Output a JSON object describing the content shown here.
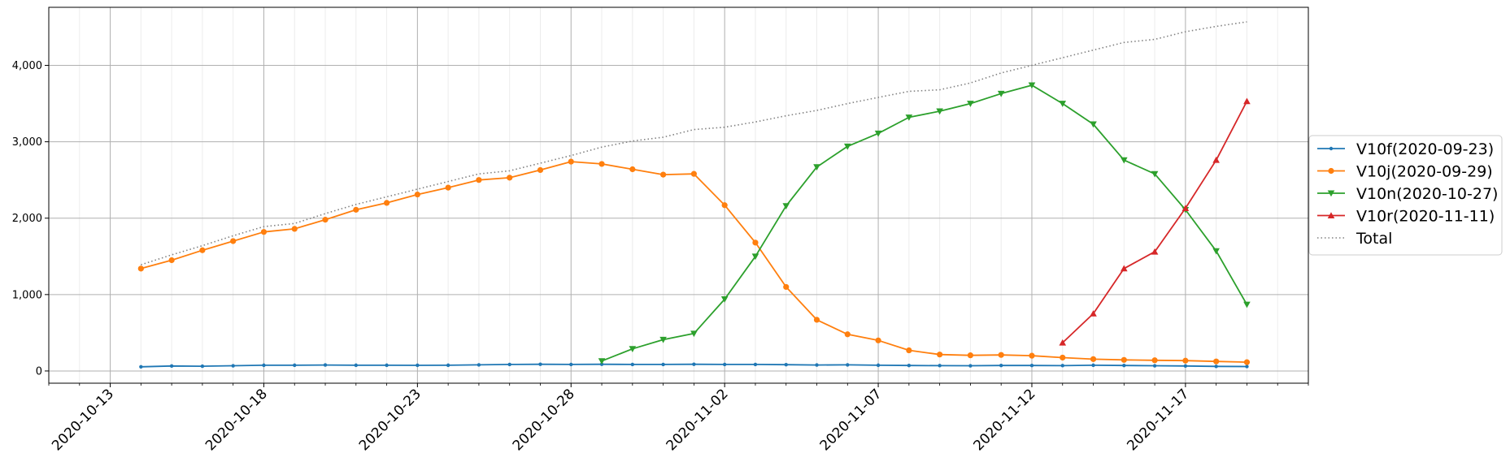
{
  "chart_data": {
    "type": "line",
    "xlabel": "",
    "ylabel": "",
    "x_axis": {
      "type": "date",
      "range": [
        "2020-10-11",
        "2020-11-21"
      ],
      "major_ticks": [
        "2020-10-13",
        "2020-10-18",
        "2020-10-23",
        "2020-10-28",
        "2020-11-02",
        "2020-11-07",
        "2020-11-12",
        "2020-11-17"
      ],
      "tick_labels": [
        "2020-10-13",
        "2020-10-18",
        "2020-10-23",
        "2020-10-28",
        "2020-11-02",
        "2020-11-07",
        "2020-11-12",
        "2020-11-17"
      ],
      "minor_ticks": "daily"
    },
    "y_axis": {
      "range": [
        -160,
        4760
      ],
      "ticks": [
        0,
        1000,
        2000,
        3000,
        4000
      ],
      "tick_labels": [
        "0",
        "1,000",
        "2,000",
        "3,000",
        "4,000"
      ]
    },
    "grid": true,
    "legend": "center-right outside",
    "series": [
      {
        "name": "V10f(2020-09-23)",
        "color": "#1f77b4",
        "marker": "point",
        "linestyle": "solid",
        "x": [
          "2020-10-14",
          "2020-10-15",
          "2020-10-16",
          "2020-10-17",
          "2020-10-18",
          "2020-10-19",
          "2020-10-20",
          "2020-10-21",
          "2020-10-22",
          "2020-10-23",
          "2020-10-24",
          "2020-10-25",
          "2020-10-26",
          "2020-10-27",
          "2020-10-28",
          "2020-10-29",
          "2020-10-30",
          "2020-10-31",
          "2020-11-01",
          "2020-11-02",
          "2020-11-03",
          "2020-11-04",
          "2020-11-05",
          "2020-11-06",
          "2020-11-07",
          "2020-11-08",
          "2020-11-09",
          "2020-11-10",
          "2020-11-11",
          "2020-11-12",
          "2020-11-13",
          "2020-11-14",
          "2020-11-15",
          "2020-11-16",
          "2020-11-17",
          "2020-11-18",
          "2020-11-19"
        ],
        "y": [
          55,
          65,
          62,
          68,
          75,
          75,
          78,
          75,
          75,
          74,
          75,
          80,
          85,
          88,
          85,
          88,
          85,
          85,
          88,
          85,
          85,
          82,
          78,
          80,
          75,
          72,
          70,
          68,
          72,
          72,
          70,
          75,
          72,
          68,
          65,
          60,
          58
        ]
      },
      {
        "name": "V10j(2020-09-29)",
        "color": "#ff7f0e",
        "marker": "circle",
        "linestyle": "solid",
        "x": [
          "2020-10-14",
          "2020-10-15",
          "2020-10-16",
          "2020-10-17",
          "2020-10-18",
          "2020-10-19",
          "2020-10-20",
          "2020-10-21",
          "2020-10-22",
          "2020-10-23",
          "2020-10-24",
          "2020-10-25",
          "2020-10-26",
          "2020-10-27",
          "2020-10-28",
          "2020-10-29",
          "2020-10-30",
          "2020-10-31",
          "2020-11-01",
          "2020-11-02",
          "2020-11-03",
          "2020-11-04",
          "2020-11-05",
          "2020-11-06",
          "2020-11-07",
          "2020-11-08",
          "2020-11-09",
          "2020-11-10",
          "2020-11-11",
          "2020-11-12",
          "2020-11-13",
          "2020-11-14",
          "2020-11-15",
          "2020-11-16",
          "2020-11-17",
          "2020-11-18",
          "2020-11-19"
        ],
        "y": [
          1340,
          1450,
          1580,
          1700,
          1820,
          1860,
          1980,
          2110,
          2200,
          2310,
          2400,
          2500,
          2530,
          2630,
          2740,
          2710,
          2640,
          2570,
          2580,
          2170,
          1680,
          1100,
          670,
          480,
          400,
          270,
          215,
          205,
          210,
          200,
          175,
          155,
          145,
          140,
          135,
          125,
          115
        ]
      },
      {
        "name": "V10n(2020-10-27)",
        "color": "#2ca02c",
        "marker": "triangle-down",
        "linestyle": "solid",
        "x": [
          "2020-10-29",
          "2020-10-30",
          "2020-10-31",
          "2020-11-01",
          "2020-11-02",
          "2020-11-03",
          "2020-11-04",
          "2020-11-05",
          "2020-11-06",
          "2020-11-07",
          "2020-11-08",
          "2020-11-09",
          "2020-11-10",
          "2020-11-11",
          "2020-11-12",
          "2020-11-13",
          "2020-11-14",
          "2020-11-15",
          "2020-11-16",
          "2020-11-17",
          "2020-11-18",
          "2020-11-19"
        ],
        "y": [
          130,
          290,
          410,
          490,
          940,
          1500,
          2160,
          2670,
          2940,
          3110,
          3320,
          3400,
          3500,
          3630,
          3740,
          3500,
          3230,
          2760,
          2580,
          2110,
          1570,
          870
        ]
      },
      {
        "name": "V10r(2020-11-11)",
        "color": "#d62728",
        "marker": "triangle-up",
        "linestyle": "solid",
        "x": [
          "2020-11-13",
          "2020-11-14",
          "2020-11-15",
          "2020-11-16",
          "2020-11-17",
          "2020-11-18",
          "2020-11-19"
        ],
        "y": [
          370,
          750,
          1340,
          1560,
          2130,
          2760,
          3530
        ]
      },
      {
        "name": "Total",
        "color": "#808080",
        "marker": "none",
        "linestyle": "dotted",
        "x": [
          "2020-10-14",
          "2020-10-15",
          "2020-10-16",
          "2020-10-17",
          "2020-10-18",
          "2020-10-19",
          "2020-10-20",
          "2020-10-21",
          "2020-10-22",
          "2020-10-23",
          "2020-10-24",
          "2020-10-25",
          "2020-10-26",
          "2020-10-27",
          "2020-10-28",
          "2020-10-29",
          "2020-10-30",
          "2020-10-31",
          "2020-11-01",
          "2020-11-02",
          "2020-11-03",
          "2020-11-04",
          "2020-11-05",
          "2020-11-06",
          "2020-11-07",
          "2020-11-08",
          "2020-11-09",
          "2020-11-10",
          "2020-11-11",
          "2020-11-12",
          "2020-11-13",
          "2020-11-14",
          "2020-11-15",
          "2020-11-16",
          "2020-11-17",
          "2020-11-18",
          "2020-11-19"
        ],
        "y": [
          1390,
          1520,
          1640,
          1770,
          1890,
          1930,
          2060,
          2180,
          2280,
          2380,
          2480,
          2580,
          2620,
          2720,
          2820,
          2930,
          3010,
          3060,
          3160,
          3190,
          3260,
          3340,
          3410,
          3500,
          3580,
          3660,
          3680,
          3770,
          3900,
          4000,
          4100,
          4200,
          4300,
          4340,
          4440,
          4510,
          4570
        ]
      }
    ]
  }
}
